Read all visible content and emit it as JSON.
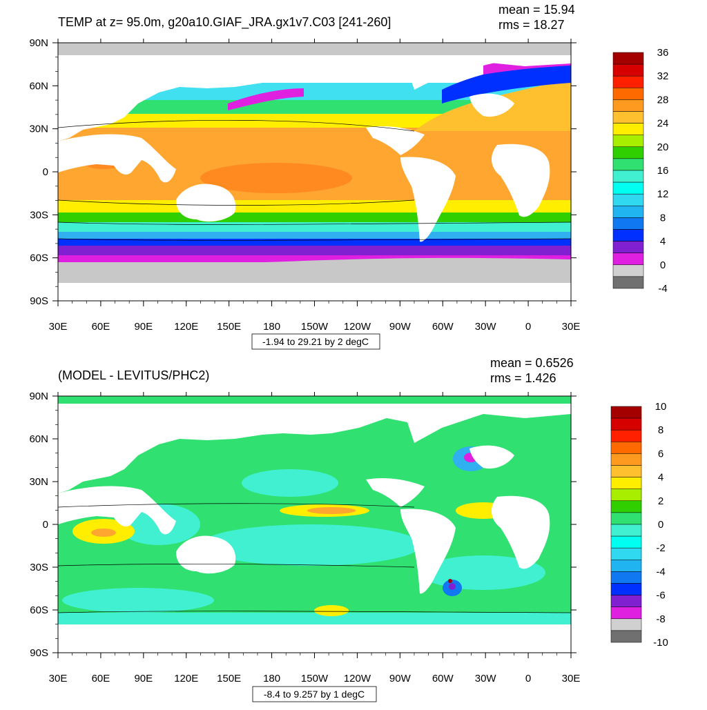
{
  "chart_data": [
    {
      "type": "heatmap",
      "title": "TEMP at z=  95.0m, g20a10.GIAF_JRA.gx1v7.C03 [241-260]",
      "stats": [
        "mean = 15.94",
        "rms = 18.27"
      ],
      "range_label": "-1.94 to 29.21 by 2 degC",
      "x_ticks": [
        "30E",
        "60E",
        "90E",
        "120E",
        "150E",
        "180",
        "150W",
        "120W",
        "90W",
        "60W",
        "30W",
        "0",
        "30E"
      ],
      "y_ticks": [
        "90N",
        "60N",
        "30N",
        "0",
        "30S",
        "60S",
        "90S"
      ],
      "colorbar": {
        "labels": [
          "36",
          "32",
          "28",
          "24",
          "20",
          "16",
          "12",
          "8",
          "4",
          "0",
          "-4"
        ],
        "colors": [
          "#a50000",
          "#d70000",
          "#ff2000",
          "#ff6a00",
          "#ff9a20",
          "#ffc030",
          "#ffee00",
          "#a8ee00",
          "#30d000",
          "#30e070",
          "#40f0d0",
          "#00fff0",
          "#30d8f0",
          "#20b4f0",
          "#1078f0",
          "#0030ff",
          "#8020d0",
          "#e020e0",
          "#d0d0d0",
          "#707070"
        ]
      }
    },
    {
      "type": "heatmap",
      "title": "(MODEL - LEVITUS/PHC2)",
      "stats": [
        "mean = 0.6526",
        "rms = 1.426"
      ],
      "range_label": "-8.4 to 9.257 by 1 degC",
      "x_ticks": [
        "30E",
        "60E",
        "90E",
        "120E",
        "150E",
        "180",
        "150W",
        "120W",
        "90W",
        "60W",
        "30W",
        "0",
        "30E"
      ],
      "y_ticks": [
        "90N",
        "60N",
        "30N",
        "0",
        "30S",
        "60S",
        "90S"
      ],
      "colorbar": {
        "labels": [
          "10",
          "8",
          "6",
          "4",
          "2",
          "0",
          "-2",
          "-4",
          "-6",
          "-8",
          "-10"
        ],
        "colors": [
          "#a50000",
          "#d70000",
          "#ff2000",
          "#ff6a00",
          "#ff9a20",
          "#ffc030",
          "#ffee00",
          "#a8ee00",
          "#30d000",
          "#30e070",
          "#40f0d0",
          "#00fff0",
          "#30d8f0",
          "#20b4f0",
          "#1078f0",
          "#0030ff",
          "#8020d0",
          "#e020e0",
          "#d0d0d0",
          "#707070"
        ]
      }
    }
  ]
}
